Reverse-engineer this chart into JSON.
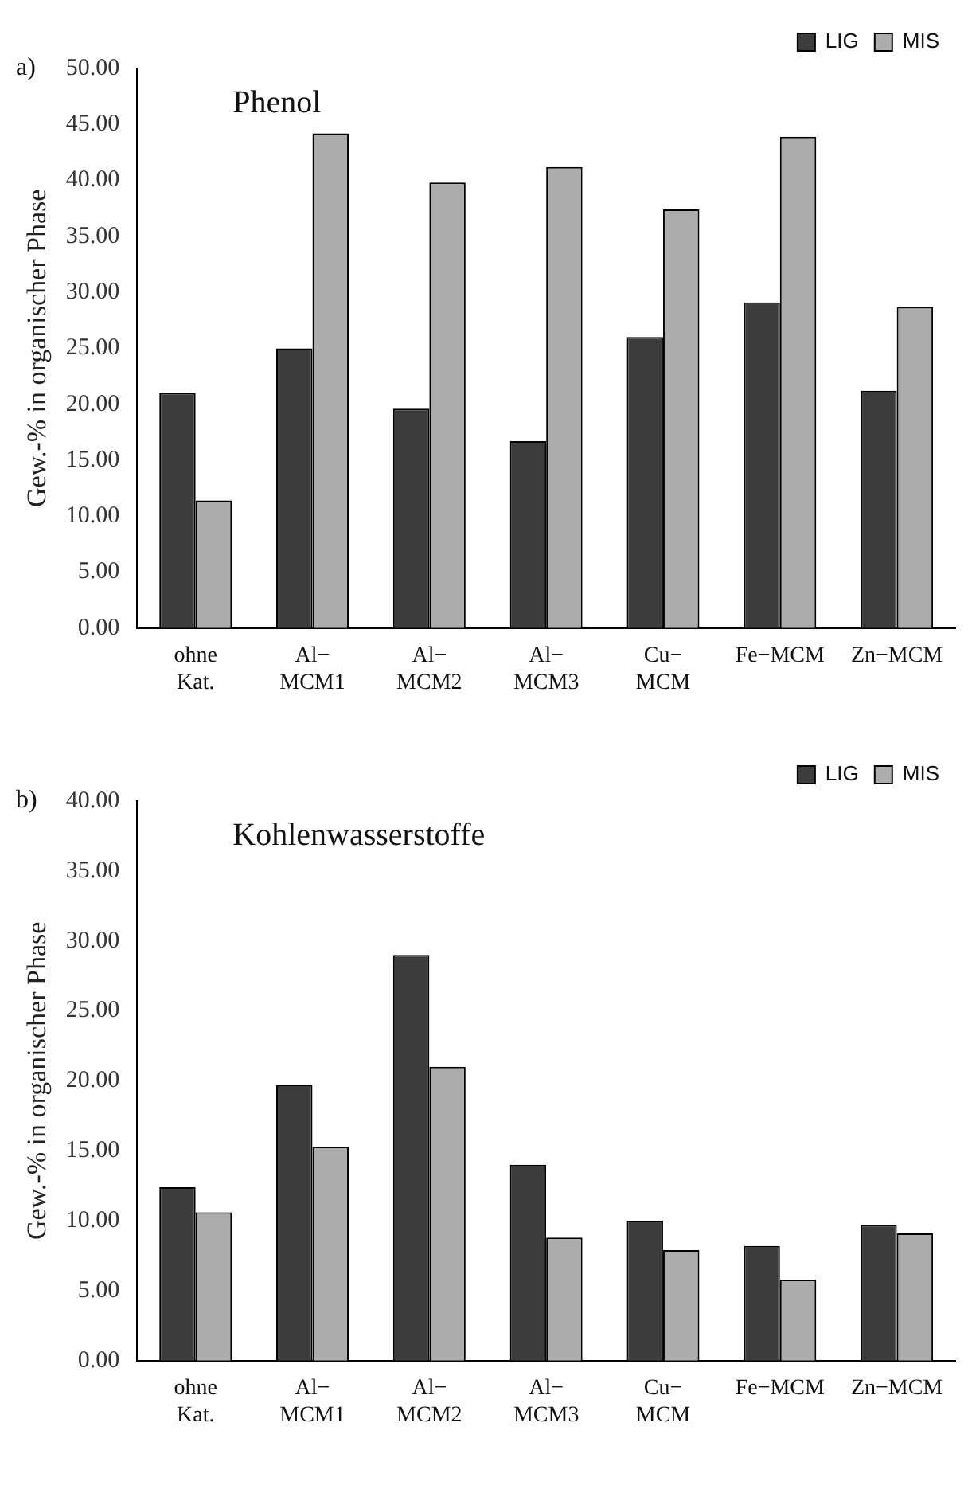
{
  "chart_data": [
    {
      "type": "bar",
      "title": "Phenol",
      "ylabel": "Gew.-% in organischer Phase",
      "annotations": [
        "a)"
      ],
      "categories": [
        "ohne\nKat.",
        "Al−\nMCM1",
        "Al−\nMCM2",
        "Al−\nMCM3",
        "Cu−\nMCM",
        "Fe−MCM",
        "Zn−MCM"
      ],
      "series": [
        {
          "name": "LIG",
          "color": "#3c3c3c",
          "values": [
            21.0,
            25.0,
            19.6,
            16.7,
            26.0,
            29.1,
            21.2
          ]
        },
        {
          "name": "MIS",
          "color": "#acacac",
          "values": [
            11.4,
            44.2,
            39.8,
            41.2,
            37.4,
            43.9,
            28.7
          ]
        }
      ],
      "ylim": [
        0,
        50
      ],
      "yticks": [
        {
          "value": 0,
          "label": "0.00"
        },
        {
          "value": 5,
          "label": "5.00"
        },
        {
          "value": 10,
          "label": "10.00"
        },
        {
          "value": 15,
          "label": "15.00"
        },
        {
          "value": 20,
          "label": "20.00"
        },
        {
          "value": 25,
          "label": "25.00"
        },
        {
          "value": 30,
          "label": "30.00"
        },
        {
          "value": 35,
          "label": "35.00"
        },
        {
          "value": 40,
          "label": "40.00"
        },
        {
          "value": 45,
          "label": "45.00"
        },
        {
          "value": 50,
          "label": "50.00"
        }
      ],
      "grid": false,
      "legend": "top right"
    },
    {
      "type": "bar",
      "title": "Kohlenwasserstoffe",
      "ylabel": "Gew.-% in organischer Phase",
      "annotations": [
        "b)"
      ],
      "categories": [
        "ohne\nKat.",
        "Al−\nMCM1",
        "Al−\nMCM2",
        "Al−\nMCM3",
        "Cu−\nMCM",
        "Fe−MCM",
        "Zn−MCM"
      ],
      "series": [
        {
          "name": "LIG",
          "color": "#3c3c3c",
          "values": [
            12.4,
            19.7,
            29.0,
            14.0,
            10.0,
            8.2,
            9.7
          ]
        },
        {
          "name": "MIS",
          "color": "#acacac",
          "values": [
            10.6,
            15.3,
            21.0,
            8.8,
            7.9,
            5.8,
            9.1
          ]
        }
      ],
      "ylim": [
        0,
        40
      ],
      "yticks": [
        {
          "value": 0,
          "label": "0.00"
        },
        {
          "value": 5,
          "label": "5.00"
        },
        {
          "value": 10,
          "label": "10.00"
        },
        {
          "value": 15,
          "label": "15.00"
        },
        {
          "value": 20,
          "label": "20.00"
        },
        {
          "value": 25,
          "label": "25.00"
        },
        {
          "value": 30,
          "label": "30.00"
        },
        {
          "value": 35,
          "label": "35.00"
        },
        {
          "value": 40,
          "label": "40.00"
        }
      ],
      "grid": false,
      "legend": "top right"
    }
  ]
}
